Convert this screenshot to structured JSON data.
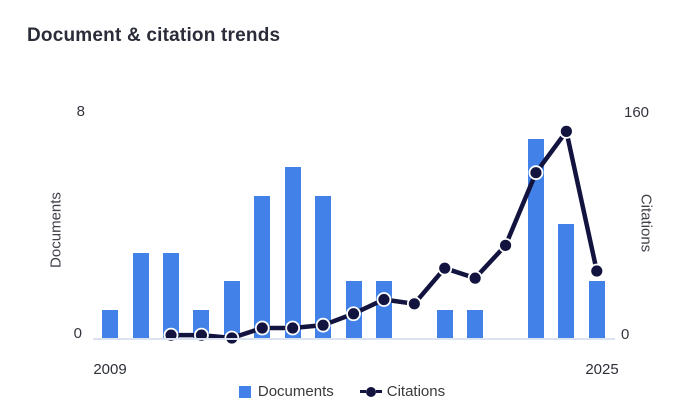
{
  "title": "Document & citation trends",
  "colors": {
    "bar": "#4181e8",
    "line": "#12143f",
    "dot_stroke": "#ffffff",
    "baseline": "#dce3f0"
  },
  "chart_data": {
    "type": "bar",
    "subtype": "dual-axis bar + line combo",
    "years": [
      2009,
      2010,
      2011,
      2012,
      2013,
      2014,
      2015,
      2016,
      2017,
      2018,
      2019,
      2020,
      2021,
      2022,
      2023,
      2024,
      2025
    ],
    "series": [
      {
        "name": "Documents",
        "type": "bar",
        "axis": "left",
        "values": [
          1,
          3,
          3,
          1,
          2,
          5,
          6,
          5,
          2,
          2,
          0,
          1,
          1,
          0,
          7,
          4,
          2
        ]
      },
      {
        "name": "Citations",
        "type": "line",
        "axis": "right",
        "values": [
          null,
          null,
          2,
          2,
          0,
          7,
          7,
          9,
          17,
          27,
          24,
          49,
          42,
          65,
          116,
          145,
          47
        ]
      }
    ],
    "left_axis": {
      "label": "Documents",
      "min": 0,
      "max": 8,
      "ticks": {
        "min": "0",
        "max": "8"
      }
    },
    "right_axis": {
      "label": "Citations",
      "min": 0,
      "max": 160,
      "ticks": {
        "min": "0",
        "max": "160"
      }
    },
    "x_axis": {
      "tick_labels": {
        "first": "2009",
        "last": "2025"
      }
    },
    "grid": false,
    "legend_position": "bottom"
  },
  "legend": {
    "documents_label": "Documents",
    "citations_label": "Citations"
  }
}
